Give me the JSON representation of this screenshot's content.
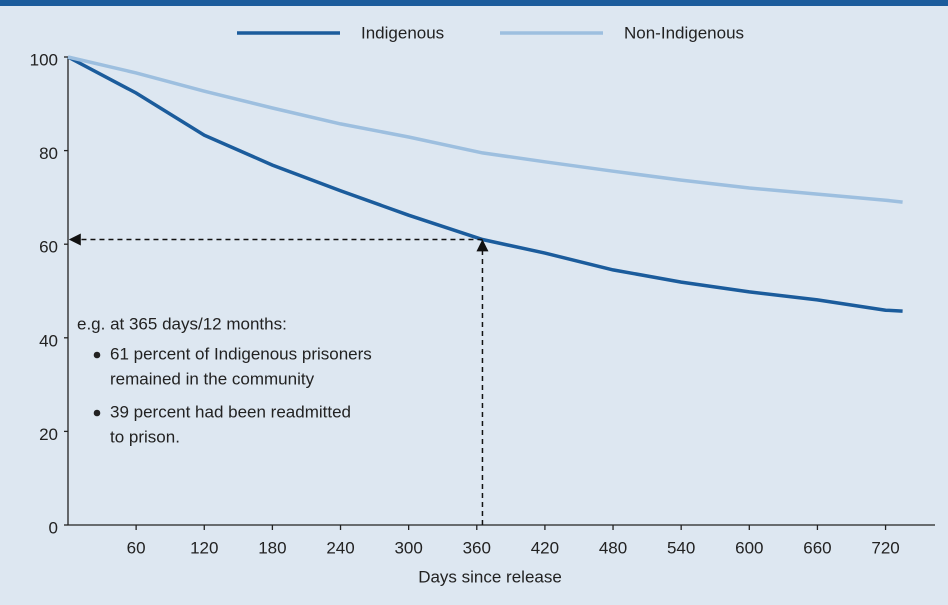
{
  "chart_data": {
    "type": "line",
    "x": [
      0,
      60,
      120,
      180,
      240,
      300,
      365,
      420,
      480,
      540,
      600,
      660,
      720,
      735
    ],
    "series": [
      {
        "name": "Indigenous",
        "color": "#1b5c9c",
        "values": [
          100,
          92.3,
          83.3,
          76.9,
          71.4,
          66.2,
          61,
          58.1,
          54.5,
          51.9,
          49.8,
          48.1,
          45.9,
          45.7
        ]
      },
      {
        "name": "Non-Indigenous",
        "color": "#9dbfdf",
        "values": [
          100,
          96.6,
          92.7,
          89.1,
          85.7,
          82.9,
          79.5,
          77.6,
          75.6,
          73.7,
          72.0,
          70.7,
          69.4,
          69.0
        ]
      }
    ],
    "xlabel": "Days since release",
    "xlim": [
      0,
      765
    ],
    "xticks": [
      60,
      120,
      180,
      240,
      300,
      360,
      420,
      480,
      540,
      600,
      660,
      720
    ],
    "ylim": [
      0,
      100
    ],
    "yticks": [
      0,
      20,
      40,
      60,
      80,
      100
    ],
    "legend": "top",
    "annotation": {
      "intro": "e.g. at 365 days/12 months:",
      "bullets": [
        [
          "61 percent of Indigenous prisoners",
          "remained in the community"
        ],
        [
          "39 percent had been readmitted",
          "to prison."
        ]
      ]
    }
  }
}
